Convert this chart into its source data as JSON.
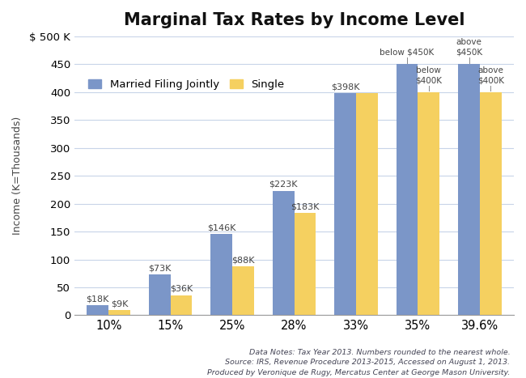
{
  "title": "Marginal Tax Rates by Income Level",
  "ylabel": "Income (K=Thousands)",
  "categories": [
    "10%",
    "15%",
    "25%",
    "28%",
    "33%",
    "35%",
    "39.6%"
  ],
  "married_values": [
    18,
    73,
    146,
    223,
    398,
    450,
    450
  ],
  "single_values": [
    9,
    36,
    88,
    183,
    398,
    400,
    400
  ],
  "married_labels": [
    "$18K",
    "$73K",
    "$146K",
    "$223K",
    "$398K",
    "below $450K",
    "above\n$450K"
  ],
  "single_labels": [
    "$9K",
    "$36K",
    "$88K",
    "$183K",
    null,
    "below\n$400K",
    "above\n$400K"
  ],
  "married_color": "#7b96c8",
  "single_color": "#f5d060",
  "ylim_max": 500,
  "yticks": [
    0,
    50,
    100,
    150,
    200,
    250,
    300,
    350,
    400,
    450
  ],
  "ytick_top_label": "$ 500 K",
  "bar_width": 0.35,
  "legend_labels": [
    "Married Filing Jointly",
    "Single"
  ],
  "footnote_line1": "Data Notes: Tax Year 2013. Numbers rounded to the nearest whole.",
  "footnote_line2": "Source: IRS, Revenue Procedure 2013-2015, Accessed on August 1, 2013.",
  "footnote_line3": "Produced by Veronique de Rugy, Mercatus Center at George Mason University.",
  "background_color": "#ffffff",
  "grid_color": "#c8d4e8",
  "label_color": "#444444",
  "footnote_color": "#444455",
  "title_fontsize": 15,
  "axis_label_fontsize": 9,
  "tick_fontsize": 9.5,
  "bar_label_fontsize": 8,
  "legend_fontsize": 9.5,
  "footnote_fontsize": 6.8
}
